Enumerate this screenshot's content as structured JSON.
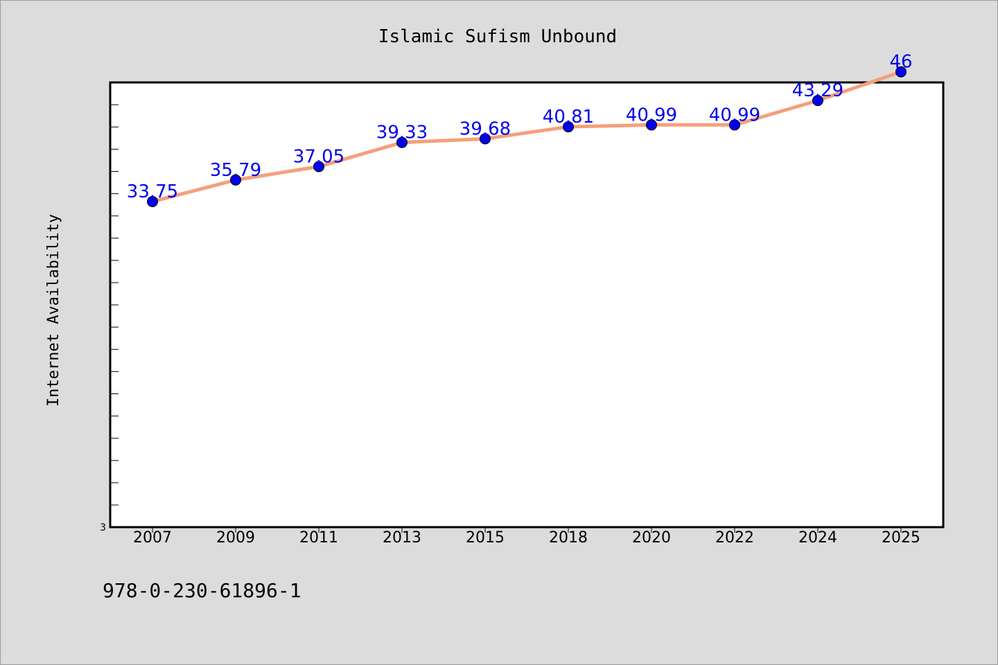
{
  "chart_data": {
    "type": "line",
    "title": "Islamic Sufism Unbound",
    "xlabel": "",
    "ylabel": "Internet Availability",
    "categories": [
      "2007",
      "2009",
      "2011",
      "2013",
      "2015",
      "2018",
      "2020",
      "2022",
      "2024",
      "2025"
    ],
    "series": [
      {
        "values": [
          33.75,
          35.79,
          37.05,
          39.33,
          39.68,
          40.81,
          40.99,
          40.99,
          43.29,
          46
        ],
        "labels": [
          "33.75",
          "35.79",
          "37.05",
          "39.33",
          "39.68",
          "40.81",
          "40.99",
          "40.99",
          "43.29",
          "46"
        ],
        "line_color": "#f4a07c",
        "marker_color": "#0000ee"
      }
    ],
    "y_tick_labels": [
      "3"
    ],
    "ylim": [
      3,
      45
    ],
    "grid": false,
    "footer_text": "978-0-230-61896-1"
  }
}
